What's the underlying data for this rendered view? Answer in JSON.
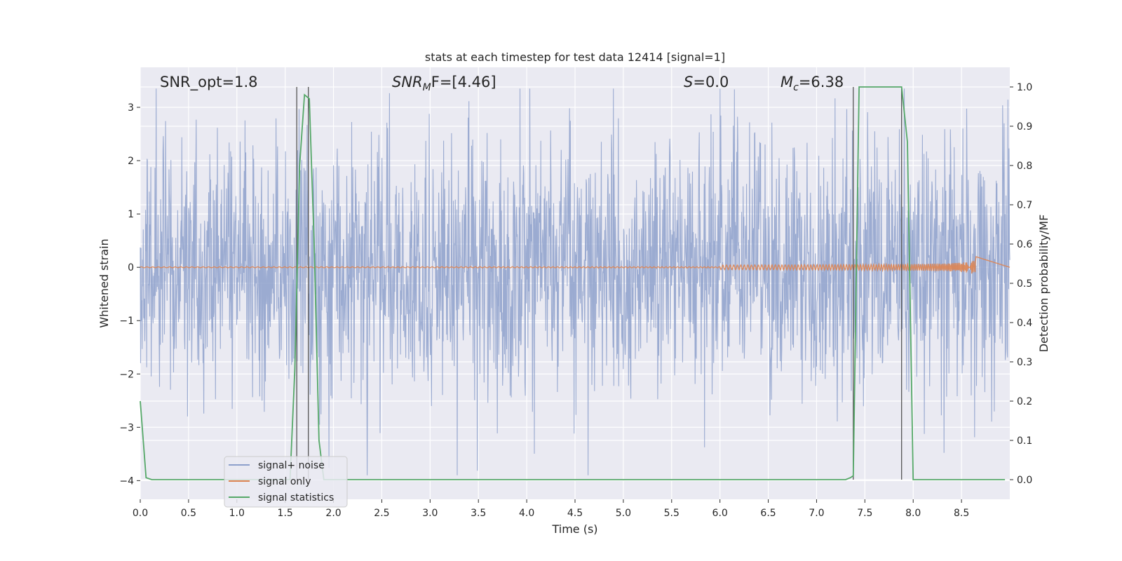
{
  "chart_data": {
    "type": "line",
    "title": "stats at each timestep for test data 12414 [signal=1]",
    "xlabel": "Time (s)",
    "ylabel": "Whitened strain",
    "ylabel_right": "Detection probability/MF",
    "xlim": [
      0.0,
      9.0
    ],
    "ylim": [
      -4.35,
      3.75
    ],
    "ylim_right": [
      -0.05,
      1.05
    ],
    "x_ticks": [
      "0.0",
      "0.5",
      "1.0",
      "1.5",
      "2.0",
      "2.5",
      "3.0",
      "3.5",
      "4.0",
      "4.5",
      "5.0",
      "5.5",
      "6.0",
      "6.5",
      "7.0",
      "7.5",
      "8.0",
      "8.5"
    ],
    "y_ticks": [
      "3",
      "2",
      "1",
      "0",
      "−1",
      "−2",
      "−3",
      "−4"
    ],
    "y_ticks_right": [
      "1.0",
      "0.9",
      "0.8",
      "0.7",
      "0.6",
      "0.5",
      "0.4",
      "0.3",
      "0.2",
      "0.1",
      "0.0"
    ],
    "grid": true,
    "legend_position": "lower-left",
    "annotations": {
      "snr_opt": "SNR_opt=1.8",
      "snr_mf_main": "SNR",
      "snr_mf_sub": "M",
      "snr_mf_rest": "F=[4.46]",
      "s_main": "S",
      "s_rest": "=0.0",
      "mc_main": "M",
      "mc_sub": "c",
      "mc_rest": "=6.38"
    },
    "vertical_markers_s": [
      1.62,
      1.74,
      7.38,
      7.88
    ],
    "series": [
      {
        "name": "signal+ noise",
        "color": "#8da0cb",
        "description_values": {
          "approx_envelope_abs": 3.3,
          "sample_rate_hz_est": 256
        }
      },
      {
        "name": "signal only",
        "color": "#dd8452",
        "chirp_end_s": 8.65,
        "chirp_peak_amplitude": 0.22
      },
      {
        "name": "signal statistics",
        "color": "#55a868",
        "axis": "right",
        "x": [
          0.0,
          0.06,
          0.12,
          0.2,
          0.5,
          1.0,
          1.5,
          1.55,
          1.6,
          1.65,
          1.7,
          1.75,
          1.8,
          1.85,
          1.9,
          2.0,
          2.3,
          3.0,
          4.0,
          5.0,
          6.0,
          7.0,
          7.3,
          7.35,
          7.38,
          7.44,
          7.5,
          7.6,
          7.7,
          7.8,
          7.88,
          7.94,
          8.0,
          8.05,
          8.1,
          8.5,
          8.95
        ],
        "y": [
          0.2,
          0.005,
          0.0,
          0.0,
          0.0,
          0.0,
          0.0,
          0.0,
          0.28,
          0.8,
          0.98,
          0.97,
          0.6,
          0.1,
          0.0,
          0.0,
          0.0,
          0.0,
          0.0,
          0.0,
          0.0,
          0.0,
          0.0,
          0.005,
          0.01,
          1.0,
          1.0,
          1.0,
          1.0,
          1.0,
          1.0,
          0.86,
          0.0,
          0.0,
          0.0,
          0.0,
          0.0
        ]
      }
    ]
  },
  "colors": {
    "plot_bg": "#eaeaf2",
    "grid": "#ffffff",
    "marker_line": "#555555"
  }
}
